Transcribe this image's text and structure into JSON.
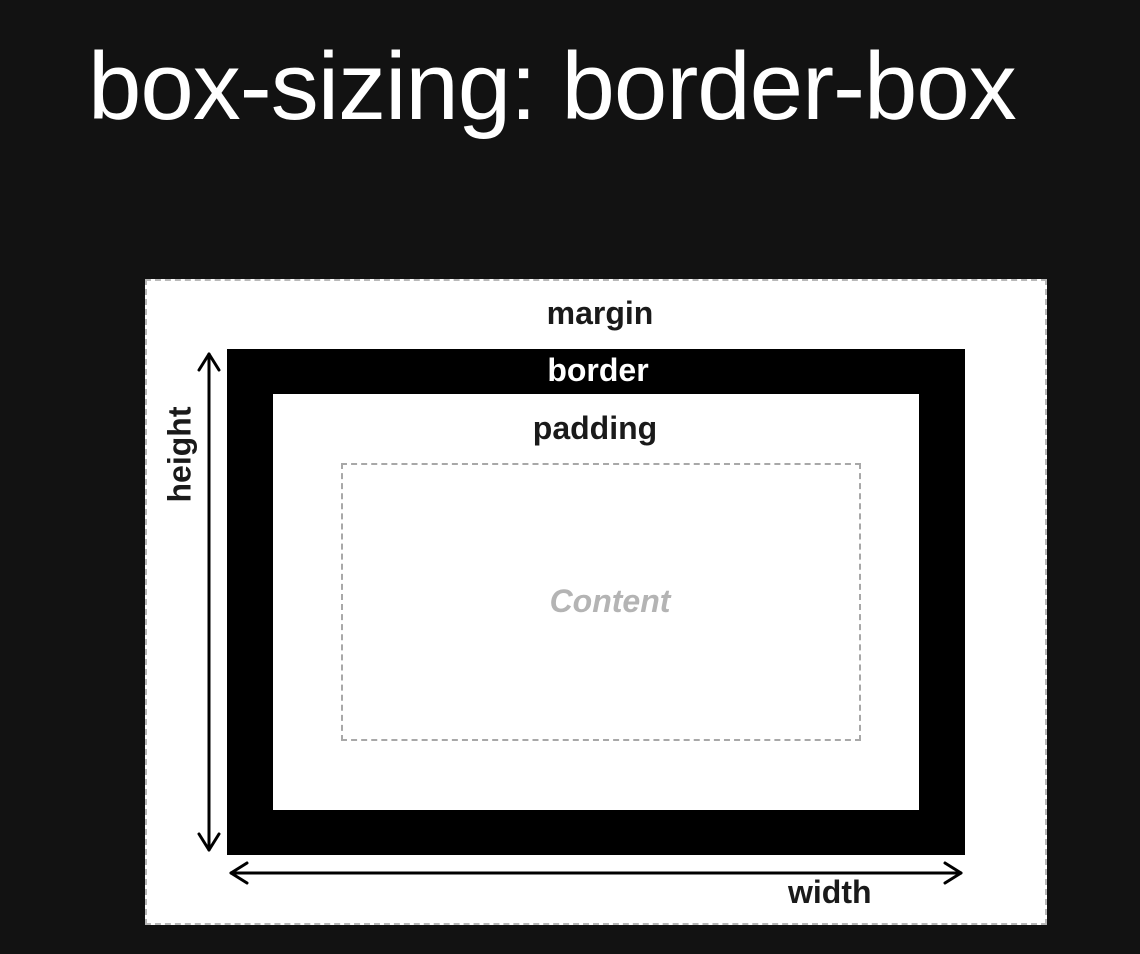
{
  "title": "box-sizing: border-box",
  "labels": {
    "margin": "margin",
    "border": "border",
    "padding": "padding",
    "content": "Content",
    "width": "width",
    "height": "height"
  },
  "colors": {
    "background": "#121212",
    "margin_fill": "#ffffff",
    "border_fill": "#000000",
    "padding_fill": "#ffffff",
    "content_text": "#b4b4b4",
    "dash_stroke": "#a8a8a8"
  }
}
